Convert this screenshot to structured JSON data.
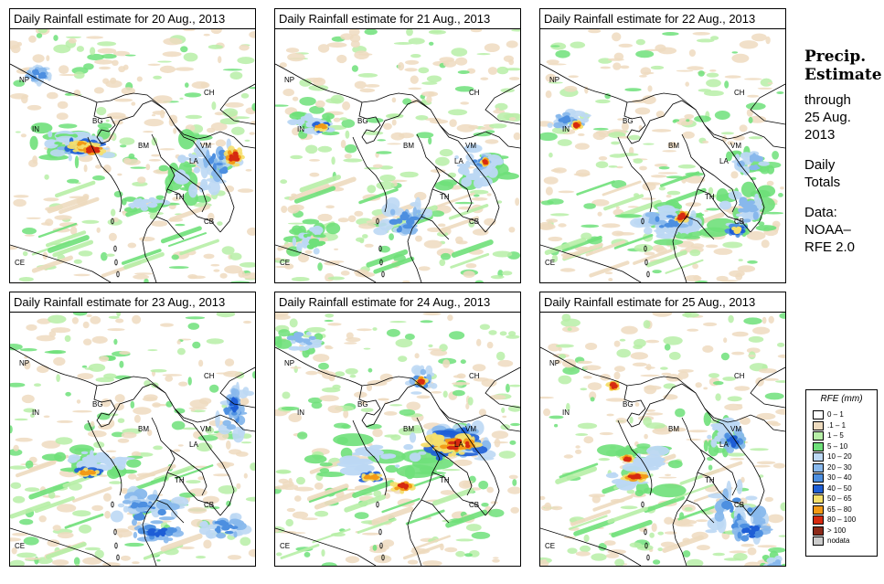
{
  "panels": [
    {
      "title": "Daily Rainfall estimate for  20 Aug., 2013"
    },
    {
      "title": "Daily Rainfall estimate for  21 Aug., 2013"
    },
    {
      "title": "Daily Rainfall estimate for  22 Aug., 2013"
    },
    {
      "title": "Daily Rainfall estimate for  23 Aug., 2013"
    },
    {
      "title": "Daily Rainfall estimate for  24 Aug., 2013"
    },
    {
      "title": "Daily Rainfall estimate for  25 Aug., 2013"
    }
  ],
  "map_labels": {
    "np": "NP",
    "ch": "CH",
    "in": "IN",
    "bg": "BG",
    "bm": "BM",
    "vm": "VM",
    "la": "LA",
    "th": "TH",
    "cb": "CB",
    "ce": "CE"
  },
  "side": {
    "title_line1": "Precip.",
    "title_line2": "Estimate",
    "through": "through",
    "date_line1": "25 Aug.",
    "date_line2": "2013",
    "totals_line1": "Daily",
    "totals_line2": "Totals",
    "data_line1": "Data:",
    "data_line2": "NOAA–",
    "data_line3": "RFE 2.0"
  },
  "legend": {
    "title": "RFE (mm)",
    "items": [
      {
        "label": "0 – 1",
        "color": "#ffffff"
      },
      {
        "label": ".1 – 1",
        "color": "#eedbbf"
      },
      {
        "label": "1 – 5",
        "color": "#b7efa7"
      },
      {
        "label": "5 – 10",
        "color": "#6fe07a"
      },
      {
        "label": "10 – 20",
        "color": "#bcd8f4"
      },
      {
        "label": "20 – 30",
        "color": "#88b8ec"
      },
      {
        "label": "30 – 40",
        "color": "#4d8fe0"
      },
      {
        "label": "40 – 50",
        "color": "#1e5ed6"
      },
      {
        "label": "50 – 65",
        "color": "#f5df6b"
      },
      {
        "label": "65 – 80",
        "color": "#f29a16"
      },
      {
        "label": "80 – 100",
        "color": "#d62a10"
      },
      {
        "label": "> 100",
        "color": "#8c2a1a"
      },
      {
        "label": "nodata",
        "color": "#cccccc"
      }
    ]
  }
}
